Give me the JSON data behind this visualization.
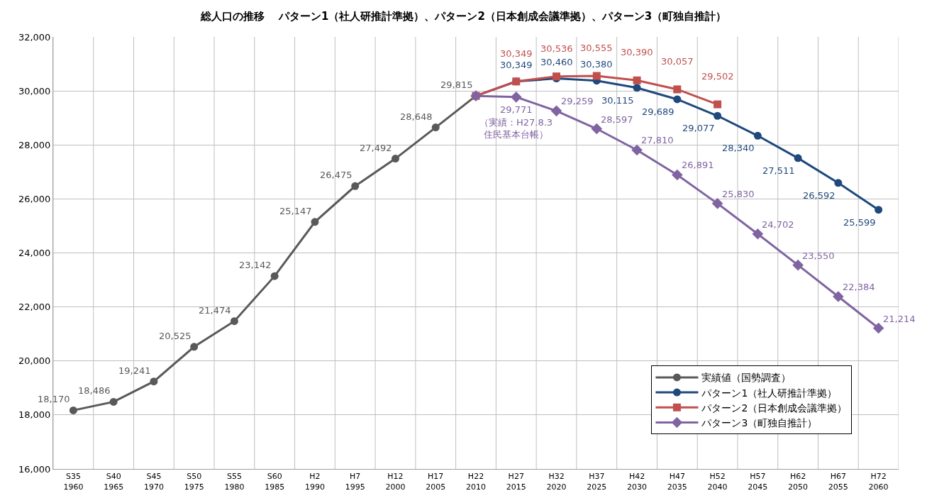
{
  "chart_data": {
    "type": "line",
    "title": "総人口の推移　 パターン1（社人研推計準拠）、パターン2（日本創成会議準拠）、パターン3（町独自推計）",
    "categories": [
      "S35\n1960",
      "S40\n1965",
      "S45\n1970",
      "S50\n1975",
      "S55\n1980",
      "S60\n1985",
      "H2\n1990",
      "H7\n1995",
      "H12\n2000",
      "H17\n2005",
      "H22\n2010",
      "H27\n2015",
      "H32\n2020",
      "H37\n2025",
      "H42\n2030",
      "H47\n2035",
      "H52\n2040",
      "H57\n2045",
      "H62\n2050",
      "H67\n2055",
      "H72\n2060"
    ],
    "ylim": [
      16000,
      32000
    ],
    "yticks": [
      {
        "value": 16000,
        "label": "16,000"
      },
      {
        "value": 18000,
        "label": "18,000"
      },
      {
        "value": 20000,
        "label": "20,000"
      },
      {
        "value": 22000,
        "label": "22,000"
      },
      {
        "value": 24000,
        "label": "24,000"
      },
      {
        "value": 26000,
        "label": "26,000"
      },
      {
        "value": 28000,
        "label": "28,000"
      },
      {
        "value": 30000,
        "label": "30,000"
      },
      {
        "value": 32000,
        "label": "32,000"
      }
    ],
    "grid": true,
    "legend": "bottom right",
    "series": [
      {
        "name": "実績値（国勢調査）",
        "color": "#595959",
        "marker": "circle",
        "values": [
          18170,
          18486,
          19241,
          20525,
          21474,
          23142,
          25147,
          26475,
          27492,
          28648,
          29815,
          null,
          null,
          null,
          null,
          null,
          null,
          null,
          null,
          null,
          null
        ],
        "value_labels": [
          "18,170",
          "18,486",
          "19,241",
          "20,525",
          "21,474",
          "23,142",
          "25,147",
          "26,475",
          "27,492",
          "28,648",
          "29,815",
          null,
          null,
          null,
          null,
          null,
          null,
          null,
          null,
          null,
          null
        ]
      },
      {
        "name": "パターン1（社人研推計準拠）",
        "color": "#1f497d",
        "marker": "circle",
        "values": [
          null,
          null,
          null,
          null,
          null,
          null,
          null,
          null,
          null,
          null,
          29815,
          30349,
          30460,
          30380,
          30115,
          29689,
          29077,
          28340,
          27511,
          26592,
          25599
        ],
        "value_labels": [
          null,
          null,
          null,
          null,
          null,
          null,
          null,
          null,
          null,
          null,
          null,
          "30,349",
          "30,460",
          "30,380",
          "30,115",
          "29,689",
          "29,077",
          "28,340",
          "27,511",
          "26,592",
          "25,599"
        ]
      },
      {
        "name": "パターン2（日本創成会議準拠）",
        "color": "#c0504d",
        "marker": "square",
        "values": [
          null,
          null,
          null,
          null,
          null,
          null,
          null,
          null,
          null,
          null,
          29815,
          30349,
          30536,
          30555,
          30390,
          30057,
          29502,
          null,
          null,
          null,
          null
        ],
        "value_labels": [
          null,
          null,
          null,
          null,
          null,
          null,
          null,
          null,
          null,
          null,
          null,
          "30,349",
          "30,536",
          "30,555",
          "30,390",
          "30,057",
          "29,502",
          null,
          null,
          null,
          null
        ]
      },
      {
        "name": "パターン3（町独自推計）",
        "color": "#8064a2",
        "marker": "diamond",
        "values": [
          null,
          null,
          null,
          null,
          null,
          null,
          null,
          null,
          null,
          null,
          29815,
          29771,
          29259,
          28597,
          27810,
          26891,
          25830,
          24702,
          23550,
          22384,
          21214
        ],
        "value_labels": [
          null,
          null,
          null,
          null,
          null,
          null,
          null,
          null,
          null,
          null,
          null,
          "29,771",
          "29,259",
          "28,597",
          "27,810",
          "26,891",
          "25,830",
          "24,702",
          "23,550",
          "22,384",
          "21,214"
        ]
      }
    ],
    "annotations": [
      "（実績：H27.8.3\n住民基本台帳）"
    ]
  }
}
